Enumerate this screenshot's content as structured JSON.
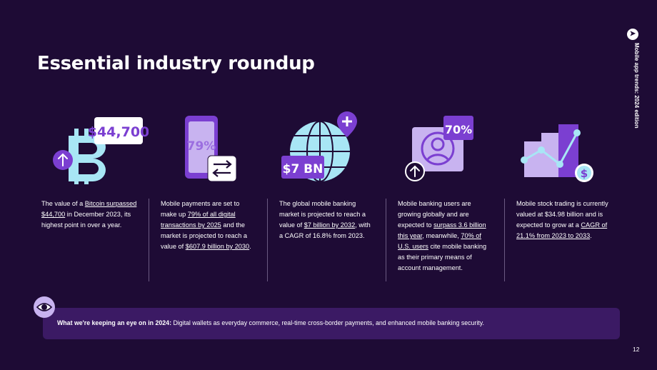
{
  "title": "Essential industry roundup",
  "side_label": "Mobile app trends: 2024 edition",
  "page_number": "12",
  "icons": {
    "bitcoin_price": "$44,700",
    "mobile_percent": "79%",
    "global_value": "$7 BN",
    "users_percent": "70%"
  },
  "columns": [
    {
      "parts": [
        {
          "t": "The value of a "
        },
        {
          "t": "Bitcoin surpassed $44,700",
          "link": true
        },
        {
          "t": " in December 2023, its highest point in over a year."
        }
      ]
    },
    {
      "parts": [
        {
          "t": "Mobile payments are set to make up "
        },
        {
          "t": "79% of all digital transactions by 2025",
          "link": true
        },
        {
          "t": " and the market is projected to reach a value of "
        },
        {
          "t": "$607.9 billion by 2030",
          "link": true
        },
        {
          "t": "."
        }
      ]
    },
    {
      "parts": [
        {
          "t": "The global mobile banking market is projected to reach a value of "
        },
        {
          "t": "$7 billion by 2032",
          "link": true
        },
        {
          "t": ", with a CAGR of 16.8% from 2023."
        }
      ]
    },
    {
      "parts": [
        {
          "t": "Mobile banking users are growing globally and are expected to "
        },
        {
          "t": "surpass 3.6 billion this year",
          "link": true
        },
        {
          "t": ", meanwhile, "
        },
        {
          "t": "70% of U.S. users",
          "link": true
        },
        {
          "t": " cite mobile banking as their primary means of account management."
        }
      ]
    },
    {
      "parts": [
        {
          "t": "Mobile stock trading is currently valued at $34.98 billion and is expected to grow at a "
        },
        {
          "t": "CAGR of 21.1% from 2023 to 2033",
          "link": true
        },
        {
          "t": "."
        }
      ]
    }
  ],
  "banner": {
    "lead": "What we're keeping an eye on in 2024:",
    "text": " Digital wallets as everyday commerce, real-time cross-border payments, and enhanced mobile banking security."
  },
  "colors": {
    "background": "#1e0b35",
    "accent_purple": "#7b3fd1",
    "light_purple": "#c8b3f0",
    "light_blue": "#a8e6f5",
    "banner": "#3b1a64"
  }
}
